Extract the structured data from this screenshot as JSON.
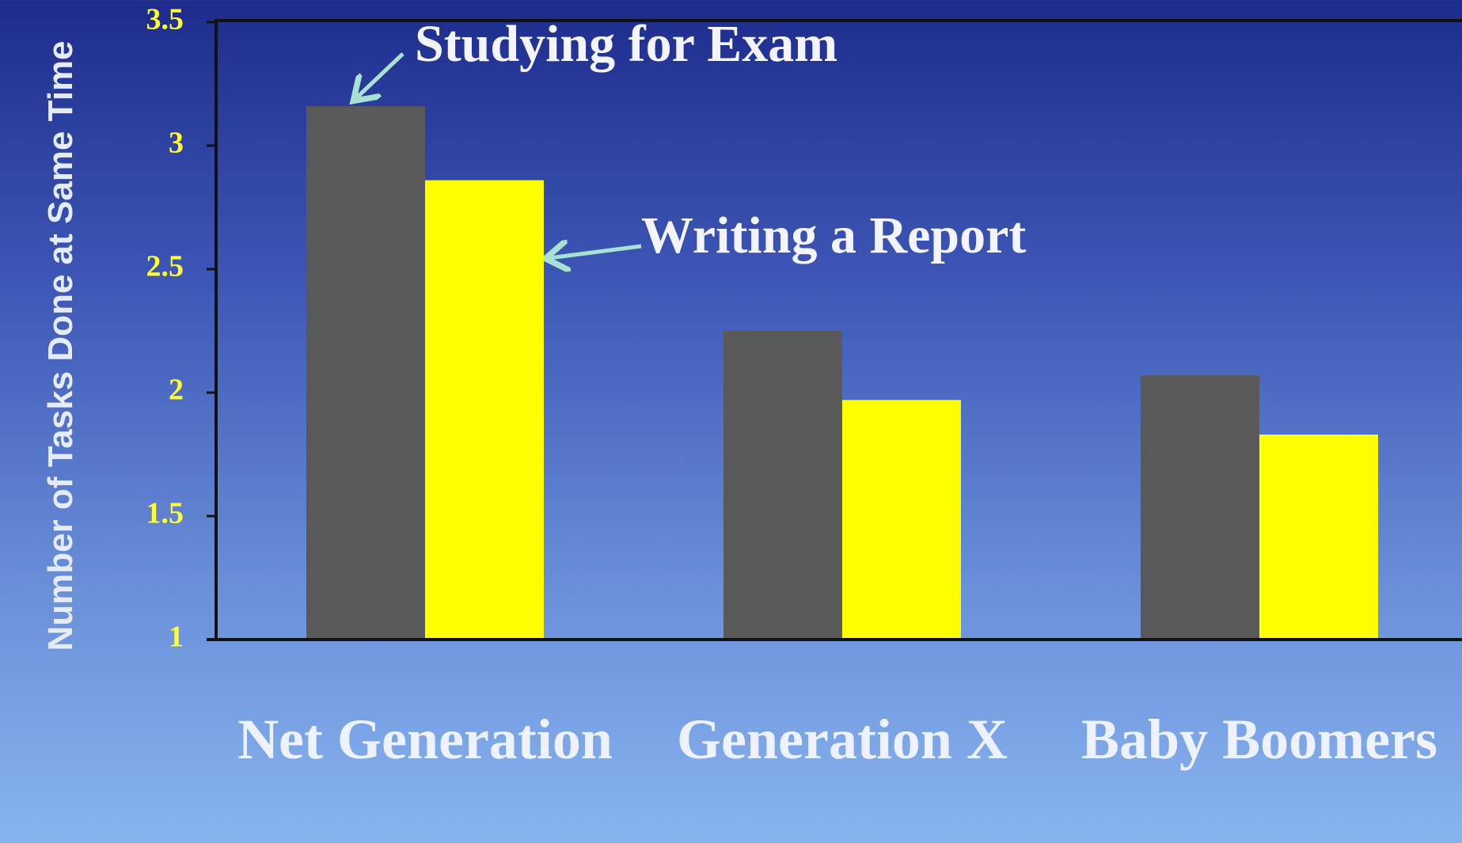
{
  "chart_data": {
    "type": "bar",
    "categories": [
      "Net Generation",
      "Generation X",
      "Baby Boomers"
    ],
    "series": [
      {
        "name": "Studying for Exam",
        "color": "#595959",
        "values": [
          3.16,
          2.25,
          2.07
        ]
      },
      {
        "name": "Writing a Report",
        "color": "#ffff00",
        "values": [
          2.86,
          1.97,
          1.83
        ]
      }
    ],
    "y_label": "Number of Tasks Done at Same Time",
    "ylim": [
      1,
      3.5
    ],
    "yticks": [
      1,
      1.5,
      2,
      2.5,
      3,
      3.5
    ],
    "grid": false
  }
}
